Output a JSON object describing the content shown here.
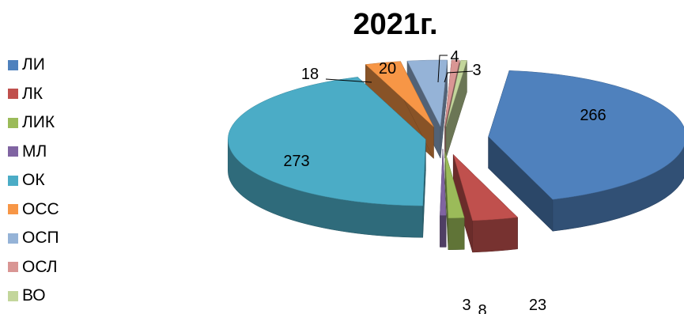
{
  "chart_data": {
    "type": "pie",
    "title": "2021г.",
    "categories": [
      "ЛИ",
      "ЛК",
      "ЛИК",
      "МЛ",
      "ОК",
      "ОСС",
      "ОСП",
      "ОСЛ",
      "ВО"
    ],
    "values": [
      266,
      23,
      8,
      3,
      273,
      18,
      20,
      4,
      3
    ],
    "value_labels": [
      "266",
      "23",
      "8",
      "3",
      "273",
      "18",
      "20",
      "4",
      "3"
    ],
    "colors": [
      "#4F81BD",
      "#C0504D",
      "#9BBB59",
      "#8064A2",
      "#4BACC6",
      "#F79646",
      "#95B3D7",
      "#D99694",
      "#C3D69B"
    ],
    "legend_position": "left",
    "style": "3d-exploded"
  }
}
